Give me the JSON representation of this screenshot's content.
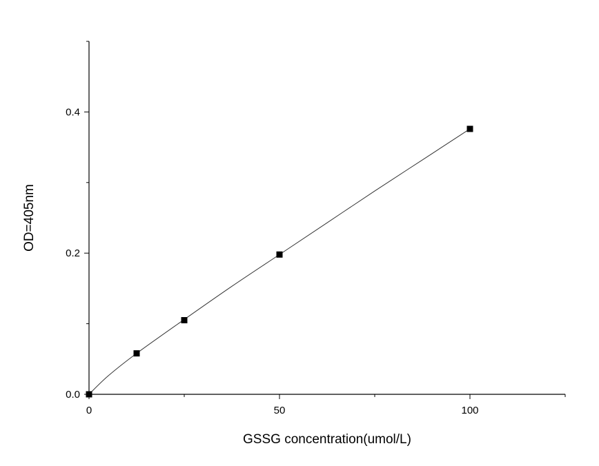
{
  "chart_data": {
    "type": "scatter",
    "title": "",
    "xlabel": "GSSG concentration(umol/L)",
    "ylabel": "OD=405nm",
    "xlim": [
      0,
      125
    ],
    "ylim": [
      0,
      0.5
    ],
    "x_ticks": [
      0,
      50,
      100
    ],
    "x_tick_labels": [
      "0",
      "50",
      "100"
    ],
    "x_minor_ticks": [
      25,
      75,
      125
    ],
    "y_ticks": [
      0.0,
      0.2,
      0.4
    ],
    "y_tick_labels": [
      "0.0",
      "0.2",
      "0.4"
    ],
    "y_minor_ticks": [
      0.1,
      0.3,
      0.5
    ],
    "grid": false,
    "colors": {
      "marker": "#000000",
      "fit": "#333333",
      "axis": "#000000"
    },
    "series": [
      {
        "marker": "square",
        "x": [
          0,
          12.5,
          25,
          50,
          100
        ],
        "y": [
          0.0,
          0.058,
          0.105,
          0.198,
          0.376
        ]
      }
    ],
    "fit_curve": {
      "kind": "smooth",
      "x": [
        0,
        5,
        12.5,
        25,
        37.5,
        50,
        62.5,
        75,
        87.5,
        100
      ],
      "y": [
        0.0,
        0.026,
        0.058,
        0.106,
        0.153,
        0.198,
        0.243,
        0.288,
        0.332,
        0.376
      ]
    }
  }
}
